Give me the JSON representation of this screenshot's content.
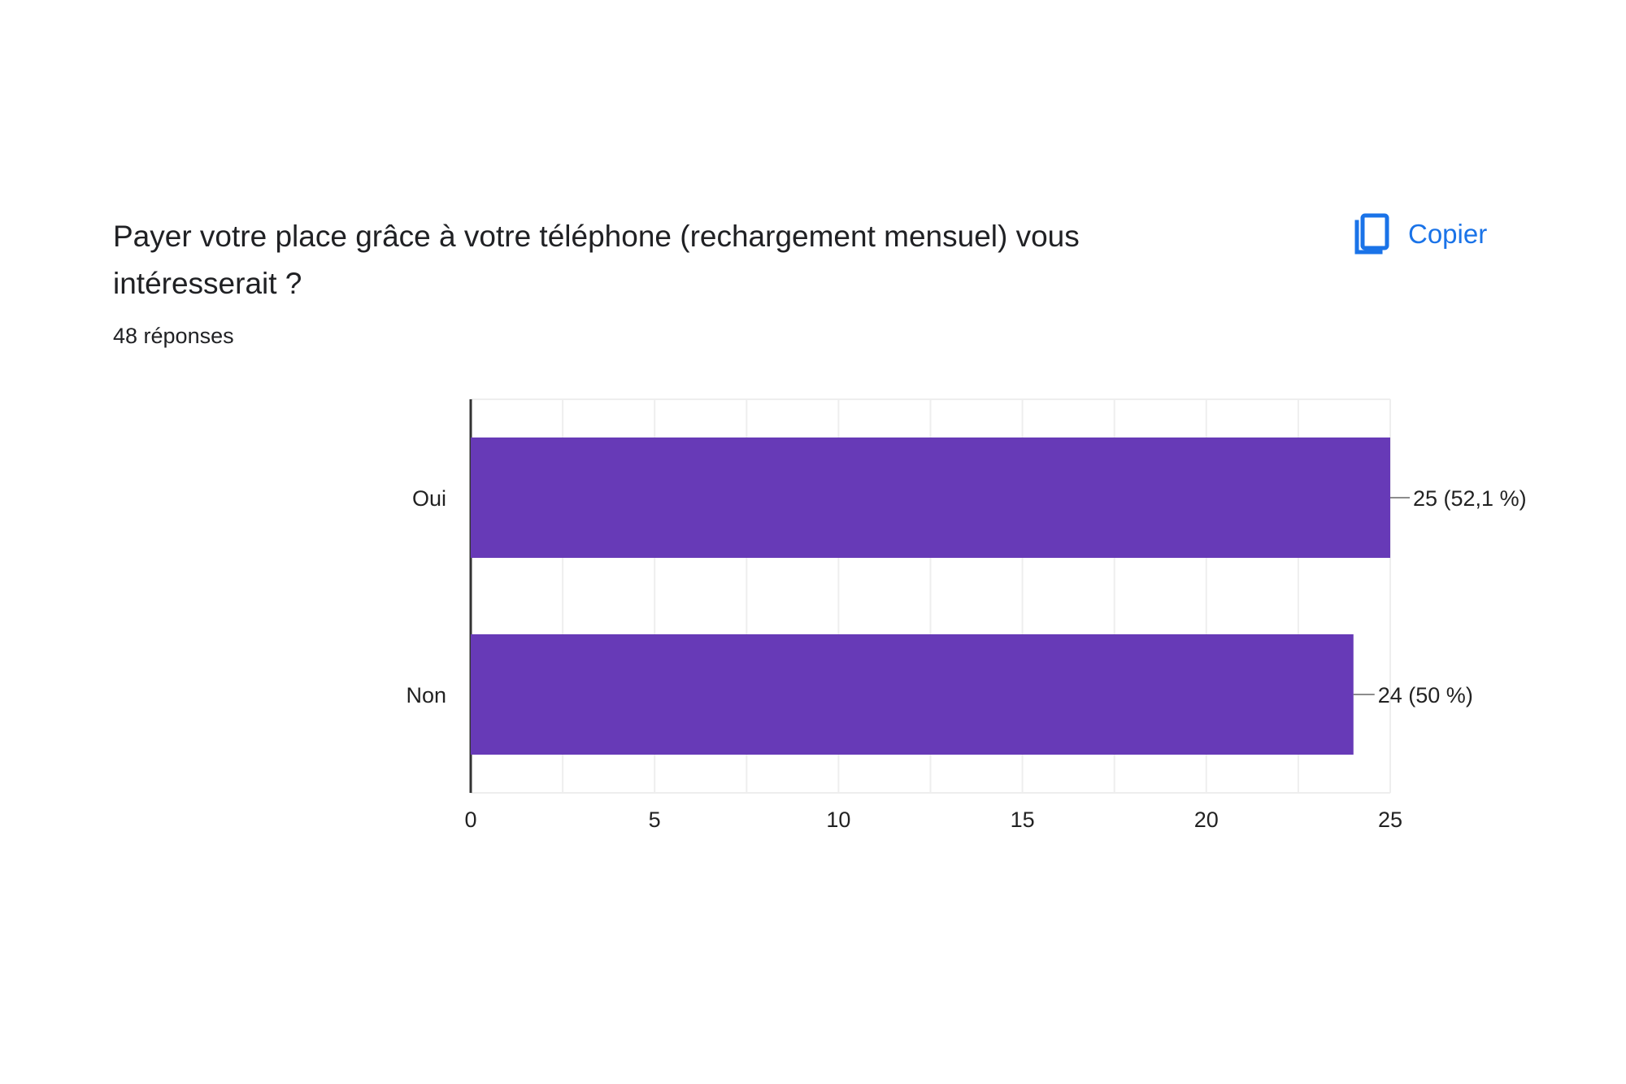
{
  "question": {
    "title": "Payer votre place grâce à votre téléphone (rechargement mensuel) vous intéresserait ?",
    "responses": "48 réponses"
  },
  "copy_button": {
    "label": "Copier",
    "icon": "copy-icon"
  },
  "colors": {
    "accent": "#1a73e8",
    "bar": "#673ab7",
    "text": "#202124",
    "grid": "#eeeeee",
    "axis": "#333333"
  },
  "chart_data": {
    "type": "bar",
    "orientation": "horizontal",
    "categories": [
      "Oui",
      "Non"
    ],
    "values": [
      25,
      24
    ],
    "data_labels": [
      "25 (52,1 %)",
      "24 (50 %)"
    ],
    "xlim": [
      0,
      25
    ],
    "xticks": [
      0,
      5,
      10,
      15,
      20,
      25
    ],
    "grid": true,
    "legend": "none"
  }
}
